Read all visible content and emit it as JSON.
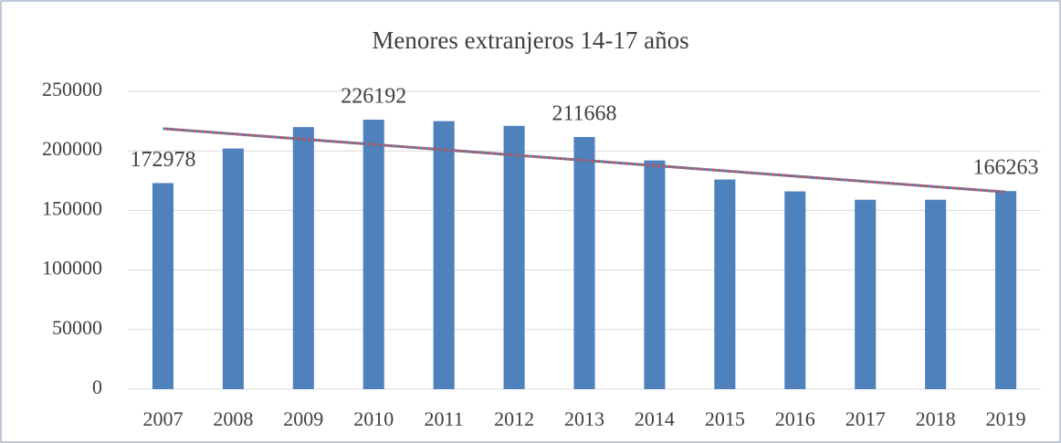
{
  "chart_data": {
    "type": "bar",
    "title": "Menores extranjeros 14-17 años",
    "categories": [
      "2007",
      "2008",
      "2009",
      "2010",
      "2011",
      "2012",
      "2013",
      "2014",
      "2015",
      "2016",
      "2017",
      "2018",
      "2019"
    ],
    "values": [
      172978,
      202000,
      220000,
      226192,
      225000,
      221000,
      211668,
      192000,
      176000,
      166000,
      159000,
      159000,
      166263
    ],
    "value_labels": [
      "172978",
      null,
      null,
      "226192",
      null,
      null,
      "211668",
      null,
      null,
      null,
      null,
      null,
      "166263"
    ],
    "color": "#4f81bd",
    "ylim": [
      0,
      250000
    ],
    "yticks": [
      0,
      50000,
      100000,
      150000,
      200000,
      250000
    ],
    "grid": true,
    "trendline": {
      "type": "linear",
      "colors": [
        "#4f81bd",
        "#c0504d"
      ]
    }
  }
}
